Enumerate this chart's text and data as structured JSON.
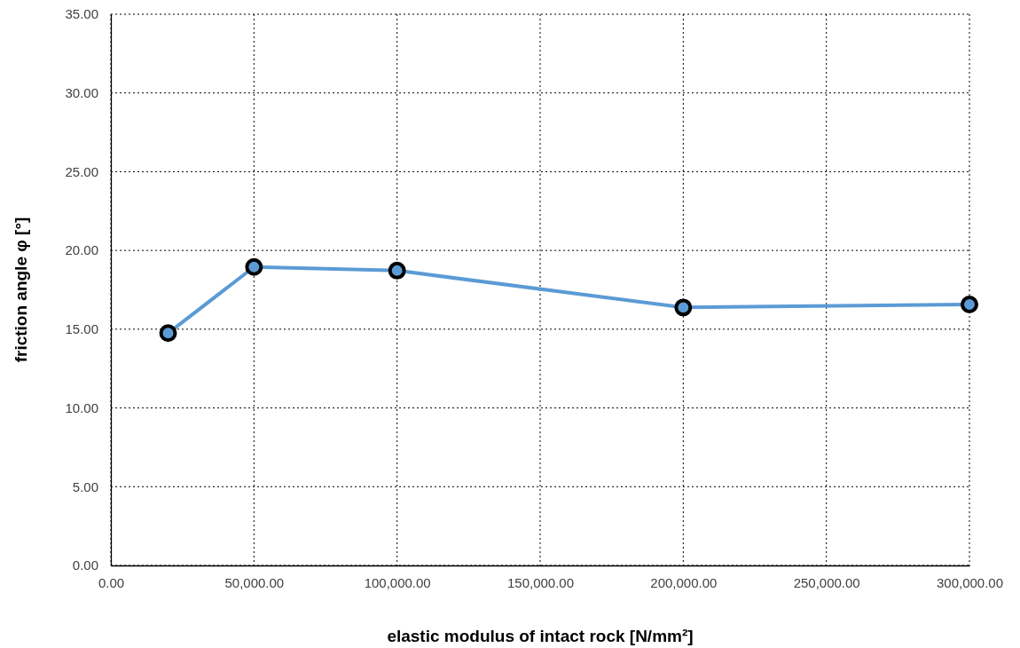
{
  "chart_data": {
    "type": "line",
    "xlabel": "elastic modulus of intact rock  [N/mm²]",
    "ylabel": "friction angle φ [°]",
    "x": [
      20000,
      50000,
      100000,
      200000,
      300000
    ],
    "series": [
      {
        "color": "#5b9bd5",
        "values": [
          14.75,
          18.95,
          18.72,
          16.38,
          16.57
        ]
      }
    ],
    "xlim": [
      0,
      300000
    ],
    "xticks": [
      {
        "value": 0,
        "label": "0.00"
      },
      {
        "value": 50000,
        "label": "50,000.00"
      },
      {
        "value": 100000,
        "label": "100,000.00"
      },
      {
        "value": 150000,
        "label": "150,000.00"
      },
      {
        "value": 200000,
        "label": "200,000.00"
      },
      {
        "value": 250000,
        "label": "250,000.00"
      },
      {
        "value": 300000,
        "label": "300,000.00"
      }
    ],
    "ylim": [
      0,
      35
    ],
    "yticks": [
      {
        "value": 0,
        "label": "0.00"
      },
      {
        "value": 5,
        "label": "5.00"
      },
      {
        "value": 10,
        "label": "10.00"
      },
      {
        "value": 15,
        "label": "15.00"
      },
      {
        "value": 20,
        "label": "20.00"
      },
      {
        "value": 25,
        "label": "25.00"
      },
      {
        "value": 30,
        "label": "30.00"
      },
      {
        "value": 35,
        "label": "35.00"
      }
    ],
    "grid": true,
    "marker": "circle",
    "line_style": "solid"
  }
}
